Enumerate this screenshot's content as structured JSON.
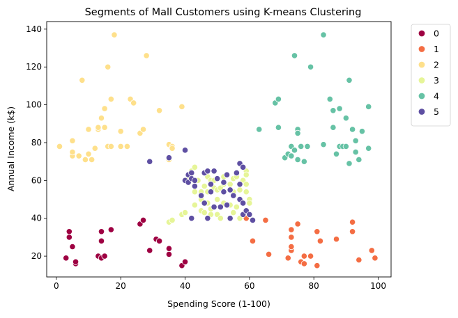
{
  "chart_data": {
    "type": "scatter",
    "title": "Segments of Mall Customers using K-means Clustering",
    "xlabel": "Spending Score (1-100)",
    "ylabel": "Annual Income (k$)",
    "xlim": [
      -3,
      104
    ],
    "ylim": [
      9,
      144
    ],
    "xticks": [
      0,
      20,
      40,
      60,
      80,
      100
    ],
    "yticks": [
      20,
      40,
      60,
      80,
      100,
      120,
      140
    ],
    "grid": false,
    "legend_position": "outside-top-right",
    "series": [
      {
        "name": "0",
        "color": "#9e0142",
        "points": [
          [
            3,
            19
          ],
          [
            4,
            30
          ],
          [
            4,
            33
          ],
          [
            5,
            25
          ],
          [
            6,
            16
          ],
          [
            6,
            17
          ],
          [
            13,
            20
          ],
          [
            14,
            19
          ],
          [
            14,
            28
          ],
          [
            14,
            33
          ],
          [
            15,
            20
          ],
          [
            17,
            34
          ],
          [
            26,
            37
          ],
          [
            27,
            39
          ],
          [
            29,
            23
          ],
          [
            31,
            29
          ],
          [
            32,
            28
          ],
          [
            35,
            21
          ],
          [
            35,
            24
          ],
          [
            39,
            15
          ],
          [
            40,
            17
          ]
        ]
      },
      {
        "name": "1",
        "color": "#f46d43",
        "points": [
          [
            59,
            40
          ],
          [
            61,
            28
          ],
          [
            65,
            39
          ],
          [
            66,
            21
          ],
          [
            72,
            19
          ],
          [
            73,
            23
          ],
          [
            73,
            25
          ],
          [
            73,
            30
          ],
          [
            73,
            34
          ],
          [
            75,
            37
          ],
          [
            76,
            17
          ],
          [
            77,
            16
          ],
          [
            77,
            20
          ],
          [
            79,
            20
          ],
          [
            81,
            15
          ],
          [
            81,
            33
          ],
          [
            82,
            28
          ],
          [
            87,
            29
          ],
          [
            92,
            33
          ],
          [
            92,
            38
          ],
          [
            94,
            18
          ],
          [
            98,
            23
          ],
          [
            99,
            19
          ]
        ]
      },
      {
        "name": "2",
        "color": "#fee08b",
        "points": [
          [
            1,
            78
          ],
          [
            5,
            73
          ],
          [
            5,
            75
          ],
          [
            5,
            81
          ],
          [
            7,
            73
          ],
          [
            8,
            113
          ],
          [
            9,
            71
          ],
          [
            10,
            74
          ],
          [
            10,
            87
          ],
          [
            11,
            71
          ],
          [
            12,
            77
          ],
          [
            13,
            87
          ],
          [
            13,
            88
          ],
          [
            14,
            93
          ],
          [
            15,
            88
          ],
          [
            15,
            98
          ],
          [
            16,
            120
          ],
          [
            16,
            78
          ],
          [
            17,
            78
          ],
          [
            17,
            103
          ],
          [
            18,
            137
          ],
          [
            20,
            86
          ],
          [
            20,
            78
          ],
          [
            22,
            78
          ],
          [
            23,
            103
          ],
          [
            24,
            101
          ],
          [
            26,
            85
          ],
          [
            27,
            87
          ],
          [
            28,
            126
          ],
          [
            32,
            97
          ],
          [
            35,
            71
          ],
          [
            35,
            79
          ],
          [
            36,
            78
          ],
          [
            36,
            77
          ],
          [
            39,
            99
          ]
        ]
      },
      {
        "name": "3",
        "color": "#e6f598",
        "points": [
          [
            35,
            38
          ],
          [
            36,
            39
          ],
          [
            39,
            42
          ],
          [
            40,
            43
          ],
          [
            41,
            62
          ],
          [
            41,
            61
          ],
          [
            42,
            65
          ],
          [
            43,
            67
          ],
          [
            43,
            54
          ],
          [
            43,
            47
          ],
          [
            44,
            60
          ],
          [
            45,
            54
          ],
          [
            45,
            44
          ],
          [
            46,
            43
          ],
          [
            46,
            57
          ],
          [
            47,
            54
          ],
          [
            47,
            62
          ],
          [
            48,
            60
          ],
          [
            48,
            42
          ],
          [
            48,
            45
          ],
          [
            49,
            56
          ],
          [
            49,
            60
          ],
          [
            50,
            55
          ],
          [
            50,
            50
          ],
          [
            50,
            42
          ],
          [
            51,
            56
          ],
          [
            51,
            46
          ],
          [
            51,
            40
          ],
          [
            52,
            48
          ],
          [
            52,
            62
          ],
          [
            52,
            58
          ],
          [
            53,
            63
          ],
          [
            54,
            47
          ],
          [
            54,
            58
          ],
          [
            55,
            61
          ],
          [
            55,
            54
          ],
          [
            55,
            43
          ],
          [
            56,
            62
          ],
          [
            56,
            46
          ],
          [
            57,
            40
          ],
          [
            57,
            55
          ],
          [
            58,
            60
          ],
          [
            59,
            65
          ],
          [
            59,
            63
          ],
          [
            59,
            54
          ],
          [
            60,
            50
          ],
          [
            60,
            42
          ],
          [
            60,
            48
          ],
          [
            59,
            58
          ],
          [
            45,
            50
          ],
          [
            47,
            48
          ]
        ]
      },
      {
        "name": "4",
        "color": "#66c2a5",
        "points": [
          [
            63,
            87
          ],
          [
            68,
            101
          ],
          [
            69,
            103
          ],
          [
            69,
            88
          ],
          [
            71,
            72
          ],
          [
            72,
            74
          ],
          [
            73,
            73
          ],
          [
            73,
            78
          ],
          [
            74,
            76
          ],
          [
            74,
            126
          ],
          [
            75,
            87
          ],
          [
            75,
            85
          ],
          [
            75,
            71
          ],
          [
            76,
            78
          ],
          [
            77,
            70
          ],
          [
            78,
            78
          ],
          [
            79,
            120
          ],
          [
            83,
            137
          ],
          [
            83,
            79
          ],
          [
            85,
            103
          ],
          [
            86,
            88
          ],
          [
            86,
            97
          ],
          [
            87,
            74
          ],
          [
            88,
            98
          ],
          [
            88,
            78
          ],
          [
            89,
            78
          ],
          [
            90,
            78
          ],
          [
            90,
            93
          ],
          [
            91,
            69
          ],
          [
            91,
            113
          ],
          [
            92,
            87
          ],
          [
            93,
            81
          ],
          [
            93,
            75
          ],
          [
            94,
            71
          ],
          [
            95,
            86
          ],
          [
            97,
            99
          ],
          [
            97,
            77
          ]
        ]
      },
      {
        "name": "5",
        "color": "#5e4fa2",
        "points": [
          [
            29,
            70
          ],
          [
            35,
            72
          ],
          [
            40,
            76
          ],
          [
            40,
            60
          ],
          [
            41,
            59
          ],
          [
            41,
            63
          ],
          [
            42,
            61
          ],
          [
            42,
            64
          ],
          [
            42,
            40
          ],
          [
            43,
            60
          ],
          [
            43,
            57
          ],
          [
            45,
            52
          ],
          [
            46,
            64
          ],
          [
            46,
            48
          ],
          [
            47,
            65
          ],
          [
            47,
            40
          ],
          [
            48,
            54
          ],
          [
            48,
            58
          ],
          [
            49,
            65
          ],
          [
            49,
            46
          ],
          [
            50,
            61
          ],
          [
            51,
            46
          ],
          [
            52,
            59
          ],
          [
            52,
            54
          ],
          [
            53,
            63
          ],
          [
            53,
            47
          ],
          [
            54,
            55
          ],
          [
            54,
            40
          ],
          [
            55,
            52
          ],
          [
            56,
            64
          ],
          [
            57,
            58
          ],
          [
            57,
            69
          ],
          [
            57,
            50
          ],
          [
            58,
            48
          ],
          [
            58,
            67
          ],
          [
            58,
            42
          ],
          [
            59,
            44
          ],
          [
            61,
            39
          ],
          [
            60,
            42
          ]
        ]
      }
    ]
  }
}
